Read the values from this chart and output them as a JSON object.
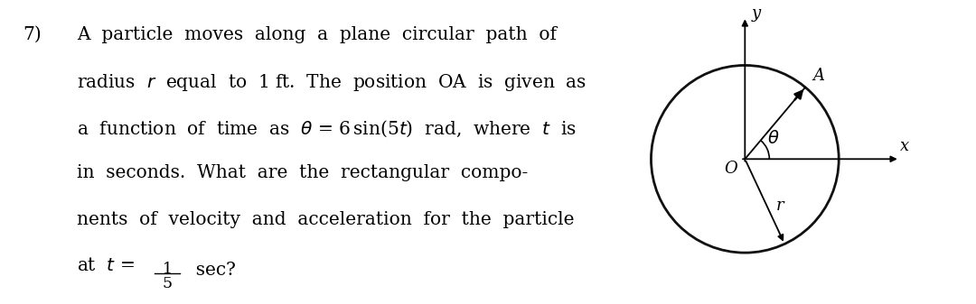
{
  "problem_number": "7)",
  "lines": [
    "A  particle  moves  along  a  plane  circular  path  of",
    "radius  $r$  equal  to  1 ft.  The  position  OA  is  given  as",
    "a  function  of  time  as  $\\theta$ = 6$\\,$sin(5$t$)  rad,  where  $t$  is",
    "in  seconds.  What  are  the  rectangular  compo-",
    "nents  of  velocity  and  acceleration  for  the  particle"
  ],
  "bg_color": "#ffffff",
  "text_color": "#000000",
  "circle_color": "#111111",
  "theta_deg": 50,
  "r_theta_deg": -65,
  "font_size_text": 14.5,
  "font_size_label": 13,
  "font_size_num": 7
}
